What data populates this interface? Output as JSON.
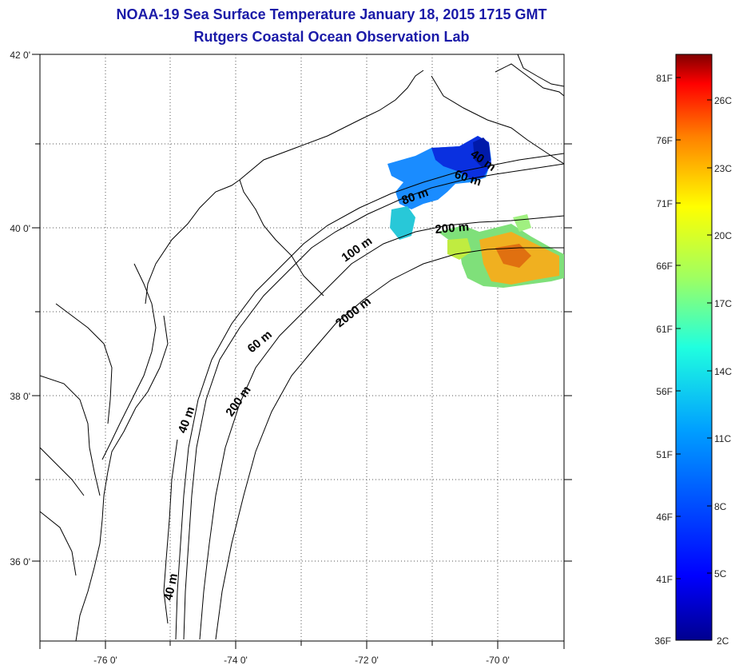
{
  "title": {
    "line1": "NOAA-19 Sea Surface Temperature January 18, 2015 1715 GMT",
    "line2": "Rutgers Coastal Ocean Observation Lab"
  },
  "map": {
    "lon_range": [
      -77,
      -69
    ],
    "lat_range": [
      35,
      42
    ],
    "lon_tick_labels": [
      "-76 0'",
      "-74 0'",
      "-72 0'",
      "-70 0'"
    ],
    "lat_tick_labels": [
      "42 0'",
      "40 0'",
      "38 0'",
      "36 0'"
    ],
    "isobath_labels": [
      "40 m",
      "60 m",
      "80 m",
      "200 m",
      "100 m",
      "60 m",
      "2000 m",
      "200 m",
      "40 m",
      "40 m"
    ],
    "grid": true
  },
  "colorbar": {
    "fahrenheit_labels": [
      "81F",
      "76F",
      "71F",
      "66F",
      "61F",
      "56F",
      "51F",
      "46F",
      "41F",
      "36F"
    ],
    "celsius_labels": [
      "26C",
      "23C",
      "20C",
      "17C",
      "14C",
      "11C",
      "8C",
      "5C",
      "2C"
    ],
    "colors": [
      "#00008f",
      "#0000ff",
      "#0080ff",
      "#00ffff",
      "#80ff80",
      "#ffff00",
      "#ff8000",
      "#ff0000",
      "#800000"
    ]
  }
}
